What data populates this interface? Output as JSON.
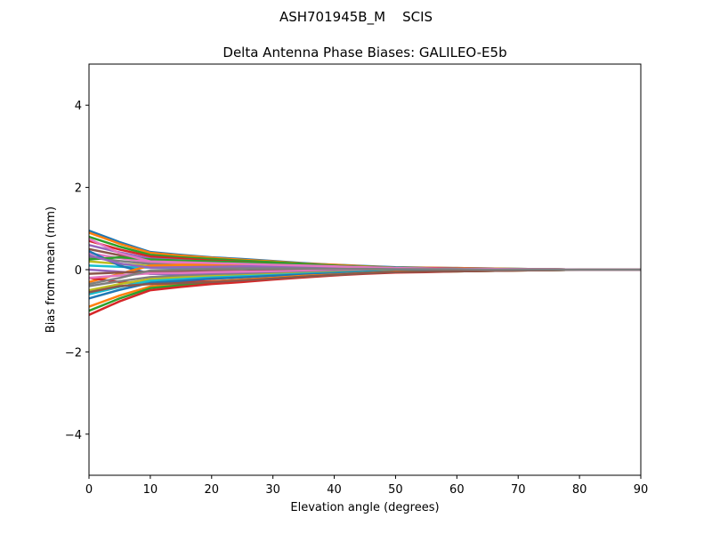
{
  "suptitle": "ASH701945B_M    SCIS",
  "chart_data": {
    "type": "line",
    "title": "Delta Antenna Phase Biases: GALILEO-E5b",
    "xlabel": "Elevation angle (degrees)",
    "ylabel": "Bias from mean (mm)",
    "xlim": [
      0,
      90
    ],
    "ylim": [
      -5,
      5
    ],
    "xticks": [
      "0",
      "10",
      "20",
      "30",
      "40",
      "50",
      "60",
      "70",
      "80",
      "90"
    ],
    "yticks": [
      "−4",
      "−2",
      "0",
      "2",
      "4"
    ],
    "grid": false,
    "legend": "none",
    "colors": [
      "#1f77b4",
      "#ff7f0e",
      "#2ca02c",
      "#d62728",
      "#9467bd",
      "#8c564b",
      "#e377c2",
      "#7f7f7f",
      "#bcbd22",
      "#17becf"
    ],
    "x": [
      0,
      5,
      10,
      15,
      20,
      25,
      30,
      35,
      40,
      45,
      50,
      55,
      60,
      65,
      70,
      75,
      80,
      85,
      90
    ],
    "series": [
      {
        "values": [
          0.95,
          0.67,
          0.43,
          0.36,
          0.3,
          0.26,
          0.21,
          0.16,
          0.12,
          0.09,
          0.06,
          0.05,
          0.04,
          0.03,
          0.02,
          0.01,
          0,
          0,
          0
        ]
      },
      {
        "values": [
          0.9,
          0.63,
          0.41,
          0.34,
          0.29,
          0.24,
          0.2,
          0.15,
          0.12,
          0.08,
          0.05,
          0.05,
          0.04,
          0.03,
          0.02,
          0.01,
          0,
          0,
          0
        ]
      },
      {
        "values": [
          0.8,
          0.56,
          0.36,
          0.3,
          0.26,
          0.22,
          0.18,
          0.14,
          0.1,
          0.07,
          0.05,
          0.04,
          0.03,
          0.02,
          0.02,
          0.01,
          0,
          0,
          0
        ]
      },
      {
        "values": [
          0.7,
          0.49,
          0.32,
          0.27,
          0.22,
          0.19,
          0.15,
          0.12,
          0.09,
          0.06,
          0.04,
          0.04,
          0.03,
          0.02,
          0.01,
          0.01,
          0,
          0,
          0
        ]
      },
      {
        "values": [
          0.6,
          0.42,
          0.27,
          0.23,
          0.19,
          0.16,
          0.13,
          0.1,
          0.08,
          0.05,
          0.04,
          0.03,
          0.02,
          0.02,
          0.01,
          0.01,
          0,
          0,
          0
        ]
      },
      {
        "values": [
          0.5,
          0.35,
          0.23,
          0.19,
          0.16,
          0.14,
          0.11,
          0.09,
          0.07,
          0.05,
          0.03,
          0.03,
          0.02,
          0.02,
          0.01,
          0.01,
          0,
          0,
          0
        ]
      },
      {
        "values": [
          0.4,
          0.28,
          0.18,
          0.15,
          0.13,
          0.11,
          0.09,
          0.07,
          0.05,
          0.04,
          0.02,
          0.02,
          0.02,
          0.01,
          0.01,
          0,
          0,
          0,
          0
        ]
      },
      {
        "values": [
          0.3,
          0.21,
          0.14,
          0.11,
          0.1,
          0.08,
          0.07,
          0.05,
          0.04,
          0.03,
          0.02,
          0.02,
          0.01,
          0.01,
          0.01,
          0,
          0,
          0,
          0
        ]
      },
      {
        "values": [
          0.2,
          0.14,
          0.09,
          0.08,
          0.06,
          0.05,
          0.04,
          0.03,
          0.03,
          0.02,
          0.01,
          0.01,
          0.01,
          0.01,
          0,
          0,
          0,
          0,
          0
        ]
      },
      {
        "values": [
          0.1,
          0.07,
          0.05,
          0.04,
          0.03,
          0.03,
          0.02,
          0.02,
          0.01,
          0.01,
          0.01,
          0.01,
          0,
          0,
          0,
          0,
          0,
          0,
          0
        ]
      },
      {
        "values": [
          0.45,
          0.1,
          -0.1,
          -0.12,
          -0.12,
          -0.1,
          -0.08,
          -0.06,
          -0.05,
          -0.04,
          -0.03,
          -0.02,
          -0.02,
          -0.01,
          -0.01,
          0,
          0,
          0,
          0
        ]
      },
      {
        "values": [
          -0.3,
          -0.1,
          0.1,
          0.12,
          0.12,
          0.1,
          0.08,
          0.07,
          0.05,
          0.04,
          0.03,
          0.02,
          0.02,
          0.01,
          0.01,
          0,
          0,
          0,
          0
        ]
      },
      {
        "values": [
          0.25,
          0.3,
          0.25,
          0.22,
          0.2,
          0.18,
          0.15,
          0.12,
          0.09,
          0.06,
          0.04,
          0.03,
          0.02,
          0.02,
          0.01,
          0.01,
          0,
          0,
          0
        ]
      },
      {
        "values": [
          -0.2,
          -0.3,
          -0.35,
          -0.3,
          -0.28,
          -0.25,
          -0.2,
          -0.16,
          -0.12,
          -0.08,
          -0.05,
          -0.04,
          -0.03,
          -0.02,
          -0.01,
          -0.01,
          0,
          0,
          0
        ]
      },
      {
        "values": [
          0,
          -0.05,
          -0.1,
          -0.1,
          -0.09,
          -0.08,
          -0.07,
          -0.05,
          -0.04,
          -0.03,
          -0.02,
          -0.02,
          -0.01,
          -0.01,
          0,
          0,
          0,
          0,
          0
        ]
      },
      {
        "values": [
          -0.1,
          -0.07,
          -0.05,
          -0.04,
          -0.03,
          -0.03,
          -0.02,
          -0.02,
          -0.01,
          -0.01,
          -0.01,
          -0.01,
          0,
          0,
          0,
          0,
          0,
          0,
          0
        ]
      },
      {
        "values": [
          -0.2,
          -0.14,
          -0.09,
          -0.08,
          -0.06,
          -0.05,
          -0.04,
          -0.03,
          -0.03,
          -0.02,
          -0.01,
          -0.01,
          -0.01,
          -0.01,
          0,
          0,
          0,
          0,
          0
        ]
      },
      {
        "values": [
          -0.4,
          -0.28,
          -0.18,
          -0.15,
          -0.13,
          -0.11,
          -0.09,
          -0.07,
          -0.05,
          -0.04,
          -0.02,
          -0.02,
          -0.02,
          -0.01,
          -0.01,
          0,
          0,
          0,
          0
        ]
      },
      {
        "values": [
          -0.5,
          -0.35,
          -0.23,
          -0.19,
          -0.16,
          -0.14,
          -0.11,
          -0.09,
          -0.07,
          -0.05,
          -0.03,
          -0.03,
          -0.02,
          -0.02,
          -0.01,
          -0.01,
          0,
          0,
          0
        ]
      },
      {
        "values": [
          -0.6,
          -0.42,
          -0.27,
          -0.23,
          -0.19,
          -0.16,
          -0.13,
          -0.1,
          -0.08,
          -0.05,
          -0.04,
          -0.03,
          -0.02,
          -0.02,
          -0.01,
          -0.01,
          0,
          0,
          0
        ]
      },
      {
        "values": [
          -0.7,
          -0.49,
          -0.32,
          -0.27,
          -0.22,
          -0.19,
          -0.15,
          -0.12,
          -0.09,
          -0.06,
          -0.04,
          -0.04,
          -0.03,
          -0.02,
          -0.01,
          -0.01,
          0,
          0,
          0
        ]
      },
      {
        "values": [
          -0.9,
          -0.63,
          -0.41,
          -0.34,
          -0.29,
          -0.24,
          -0.2,
          -0.15,
          -0.12,
          -0.08,
          -0.05,
          -0.05,
          -0.04,
          -0.03,
          -0.02,
          -0.01,
          0,
          0,
          0
        ]
      },
      {
        "values": [
          -1.0,
          -0.7,
          -0.45,
          -0.38,
          -0.32,
          -0.27,
          -0.22,
          -0.17,
          -0.13,
          -0.09,
          -0.06,
          -0.05,
          -0.04,
          -0.03,
          -0.02,
          -0.01,
          0,
          0,
          0
        ]
      },
      {
        "values": [
          -1.1,
          -0.77,
          -0.5,
          -0.42,
          -0.35,
          -0.3,
          -0.24,
          -0.19,
          -0.14,
          -0.1,
          -0.07,
          -0.06,
          -0.04,
          -0.03,
          -0.02,
          -0.01,
          0,
          0,
          0
        ]
      },
      {
        "values": [
          0.35,
          0.15,
          0.05,
          0.06,
          0.07,
          0.08,
          0.08,
          0.07,
          0.05,
          0.04,
          0.03,
          0.02,
          0.02,
          0.01,
          0.01,
          0,
          0,
          0,
          0
        ]
      },
      {
        "values": [
          -0.55,
          -0.4,
          -0.35,
          -0.33,
          -0.3,
          -0.26,
          -0.22,
          -0.17,
          -0.13,
          -0.09,
          -0.06,
          -0.05,
          -0.04,
          -0.03,
          -0.02,
          -0.01,
          0,
          0,
          0
        ]
      },
      {
        "values": [
          0.75,
          0.4,
          0.2,
          0.18,
          0.16,
          0.14,
          0.12,
          0.1,
          0.08,
          0.06,
          0.04,
          0.03,
          0.02,
          0.02,
          0.01,
          0.01,
          0,
          0,
          0
        ]
      },
      {
        "values": [
          -0.35,
          -0.2,
          -0.02,
          0,
          0.02,
          0.03,
          0.03,
          0.03,
          0.02,
          0.02,
          0.01,
          0.01,
          0.01,
          0,
          0,
          0,
          0,
          0,
          0
        ]
      }
    ]
  }
}
